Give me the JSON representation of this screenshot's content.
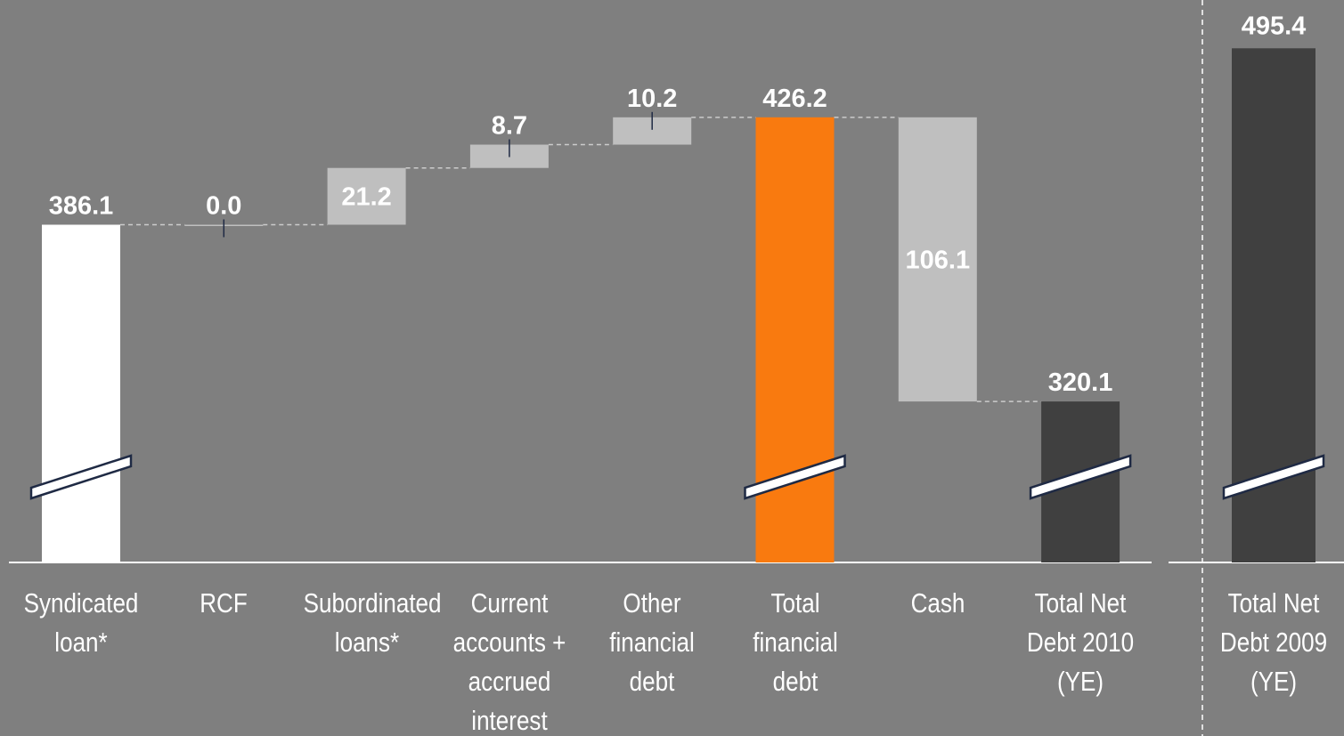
{
  "chart_data": [
    {
      "type": "waterfall",
      "categories": [
        "Syndicated loan*",
        "RCF",
        "Subordinated loans*",
        "Current accounts + accrued interest",
        "Other financial debt",
        "Total financial debt",
        "Cash",
        "Total Net Debt 2010 (YE)"
      ],
      "values": [
        386.1,
        0.0,
        21.2,
        8.7,
        10.2,
        426.2,
        106.1,
        320.1
      ],
      "value_labels": [
        "386.1",
        "0.0",
        "21.2",
        "8.7",
        "10.2",
        "426.2",
        "106.1",
        "320.1"
      ],
      "measure": [
        "absolute",
        "increase",
        "increase",
        "increase",
        "increase",
        "total",
        "decrease",
        "total"
      ],
      "colors": [
        "#ffffff",
        "#bfbfbf",
        "#bfbfbf",
        "#bfbfbf",
        "#bfbfbf",
        "#f97a0f",
        "#bfbfbf",
        "#404040"
      ],
      "ylim": [
        260,
        470
      ],
      "broken_axis": true
    },
    {
      "type": "bar",
      "categories": [
        "Total Net Debt 2009 (YE)"
      ],
      "values": [
        495.4
      ],
      "color": "#404040",
      "ylim": [
        340,
        510
      ],
      "broken_axis": true
    }
  ]
}
